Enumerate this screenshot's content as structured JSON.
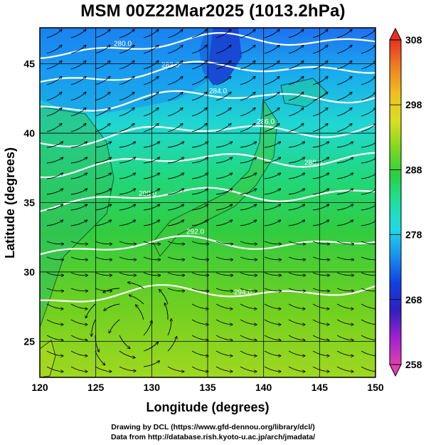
{
  "title": "MSM 00Z22Mar2025 (1013.2hPa)",
  "credits": {
    "line1": "Drawing by DCL (https://www.gfd-dennou.org/library/dcl/)",
    "line2": "Data from http://database.rish.kyoto-u.ac.jp/arch/jmadata/"
  },
  "map": {
    "xlabel": "Longitude (degrees)",
    "ylabel": "Latitude  (degrees)",
    "lon_range": [
      120,
      150
    ],
    "lat_range": [
      22.4,
      47.6
    ],
    "lon_ticks": [
      "120",
      "125",
      "130",
      "135",
      "140",
      "145",
      "150"
    ],
    "lat_ticks": [
      "25",
      "30",
      "35",
      "40",
      "45"
    ],
    "grid": true,
    "colors": {
      "grid": "#000000",
      "contour": "#ffffff",
      "streamline": "#000000"
    }
  },
  "colorbar": {
    "min": 258,
    "max": 308,
    "tick_labels": [
      "308",
      "298",
      "288",
      "278",
      "268",
      "258"
    ],
    "palette": [
      "#e040b0",
      "#a020d0",
      "#3020c0",
      "#1040e0",
      "#1890f0",
      "#20d8e8",
      "#20e0a0",
      "#28d040",
      "#80d820",
      "#d8e020",
      "#f0c020",
      "#f08020",
      "#e83020"
    ]
  },
  "contours": [
    {
      "label": "280.0",
      "lat": 46.0
    },
    {
      "label": "282.0",
      "lat": 44.0
    },
    {
      "label": "284.0",
      "lat": 42.0
    },
    {
      "label": "286.0",
      "lat": 39.6
    },
    {
      "label": "288.0",
      "lat": 37.5
    },
    {
      "label": "290.0",
      "lat": 35.0
    },
    {
      "label": "292.0",
      "lat": 31.5
    },
    {
      "label": "294.0",
      "lat": 28.0
    }
  ],
  "streamlines": [
    {
      "dir": [
        1.0,
        -0.55
      ]
    },
    {
      "dir": [
        1.0,
        -0.35
      ]
    },
    {
      "dir": [
        1.0,
        0.15
      ]
    },
    {
      "dir": [
        1.0,
        0.3
      ]
    }
  ]
}
